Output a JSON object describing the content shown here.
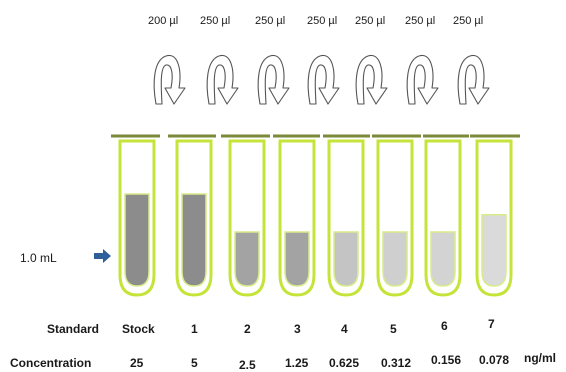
{
  "volume_marker": {
    "label": "1.0 mL"
  },
  "transfers": [
    "200 µl",
    "250 µl",
    "250 µl",
    "250 µl",
    "250 µl",
    "250 µl",
    "250 µl"
  ],
  "standard_row": {
    "label": "Standard",
    "values": [
      "Stock",
      "1",
      "2",
      "3",
      "4",
      "5",
      "6",
      "7"
    ]
  },
  "concentration_row": {
    "label": "Concentration",
    "values": [
      "25",
      "5",
      "2.5",
      "1.25",
      "0.625",
      "0.312",
      "0.156",
      "0.078"
    ],
    "unit": "ng/ml"
  },
  "tubes": [
    {
      "fill_level": 0.8,
      "color": "#8c8c8c"
    },
    {
      "fill_level": 0.8,
      "color": "#8c8c8c"
    },
    {
      "fill_level": 0.47,
      "color": "#a3a3a3"
    },
    {
      "fill_level": 0.47,
      "color": "#a3a3a3"
    },
    {
      "fill_level": 0.47,
      "color": "#c4c4c4"
    },
    {
      "fill_level": 0.47,
      "color": "#cfcfcf"
    },
    {
      "fill_level": 0.47,
      "color": "#d3d3d3"
    },
    {
      "fill_level": 0.62,
      "color": "#dadada"
    }
  ],
  "colors": {
    "tube_outline": "#c5e43a",
    "rim_bar": "#7a8a3a",
    "marker_arrow": "#2f5f9a"
  }
}
